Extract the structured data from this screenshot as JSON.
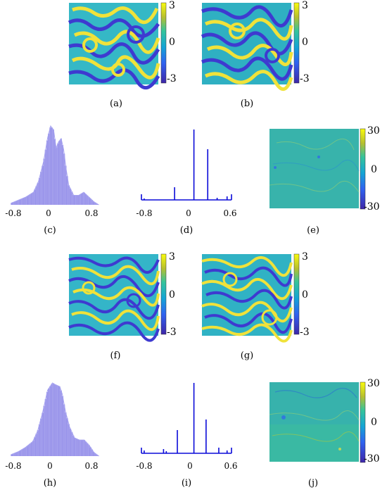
{
  "figure": {
    "captions": [
      "(a)",
      "(b)",
      "(c)",
      "(d)",
      "(e)",
      "(f)",
      "(g)",
      "(h)",
      "(i)",
      "(j)"
    ],
    "phase_colorbar": {
      "max": "3",
      "mid": "0",
      "min": "-3"
    },
    "error_colorbar": {
      "max": "30",
      "mid": "0",
      "min": "-30"
    },
    "hist_ticks": [
      "-0.8",
      "0",
      "0.8"
    ],
    "spectrum_ticks": [
      "-0.8",
      "0",
      "0.6"
    ]
  },
  "chart_data": [
    {
      "panel": "c",
      "type": "area",
      "x": [
        -0.85,
        -0.7,
        -0.55,
        -0.4,
        -0.3,
        -0.2,
        -0.12,
        -0.06,
        0,
        0.05,
        0.1,
        0.15,
        0.2,
        0.25,
        0.3,
        0.4,
        0.5,
        0.6,
        0.7,
        0.8,
        0.9
      ],
      "y": [
        0.02,
        0.06,
        0.1,
        0.16,
        0.3,
        0.55,
        0.85,
        1.0,
        0.95,
        0.72,
        0.8,
        0.84,
        0.7,
        0.45,
        0.25,
        0.12,
        0.12,
        0.16,
        0.1,
        0.04,
        0.0
      ],
      "xticks": [
        "-0.8",
        "0",
        "0.8"
      ],
      "xlim": [
        -0.9,
        0.95
      ]
    },
    {
      "panel": "d",
      "type": "bar",
      "x": [
        -0.9,
        -0.55,
        -0.35,
        0,
        0.25,
        0.42,
        0.6
      ],
      "values": [
        0.02,
        0.0,
        0.18,
        1.0,
        0.72,
        0.03,
        0.05
      ],
      "xticks": [
        "-0.8",
        "0",
        "0.6"
      ],
      "xlim": [
        -0.95,
        0.68
      ]
    },
    {
      "panel": "h",
      "type": "area",
      "x": [
        -0.9,
        -0.75,
        -0.6,
        -0.45,
        -0.35,
        -0.25,
        -0.15,
        -0.05,
        0,
        0.1,
        0.15,
        0.22,
        0.3,
        0.4,
        0.5,
        0.6,
        0.7,
        0.8,
        0.9
      ],
      "y": [
        0.02,
        0.06,
        0.12,
        0.2,
        0.35,
        0.6,
        0.9,
        1.0,
        0.98,
        0.95,
        0.85,
        0.6,
        0.4,
        0.25,
        0.22,
        0.22,
        0.15,
        0.05,
        0.0
      ],
      "xticks": [
        "-0.8",
        "0",
        "0.8"
      ],
      "xlim": [
        -0.95,
        0.95
      ]
    },
    {
      "panel": "i",
      "type": "bar",
      "x": [
        -0.9,
        -0.55,
        -0.5,
        -0.3,
        0,
        0.22,
        0.45,
        0.6
      ],
      "values": [
        0.04,
        0.06,
        0.03,
        0.33,
        1.0,
        0.48,
        0.08,
        0.04
      ],
      "xticks": [
        "-0.8",
        "0",
        "0.6"
      ],
      "xlim": [
        -0.95,
        0.68
      ]
    }
  ]
}
